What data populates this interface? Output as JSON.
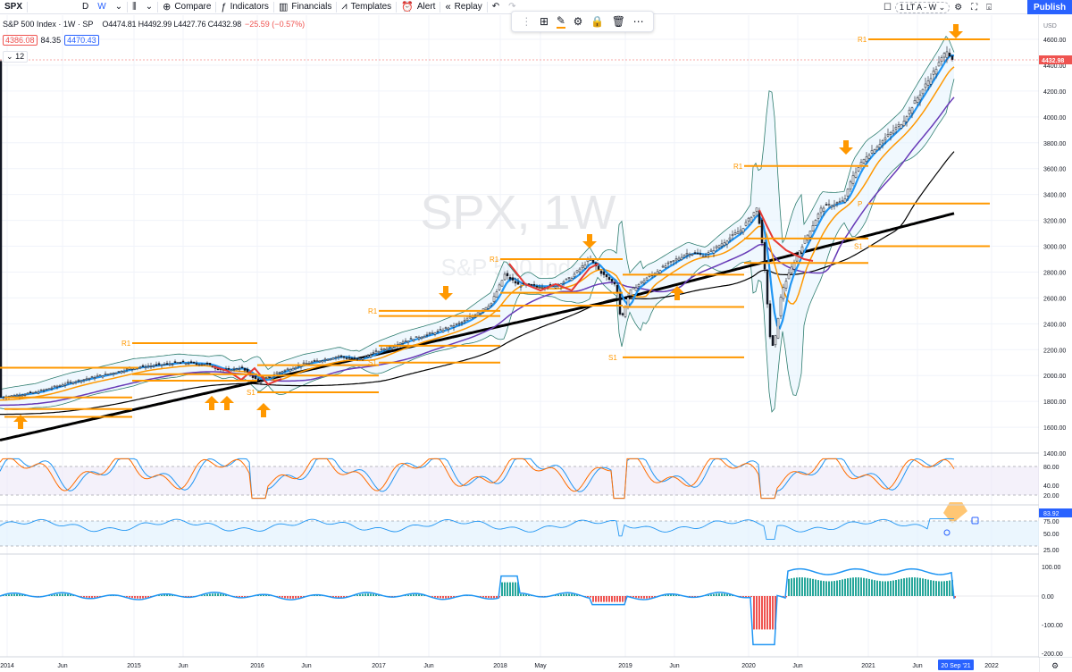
{
  "toolbar": {
    "symbol": "SPX",
    "interval_d": "D",
    "interval_w": "W",
    "compare": "Compare",
    "indicators": "Indicators",
    "financials": "Financials",
    "templates": "Templates",
    "alert": "Alert",
    "replay": "Replay",
    "layout": "1 LT A - W",
    "publish": "Publish"
  },
  "legend": {
    "title": "S&P 500 Index · 1W · SP",
    "ohlc": "O4474.81 H4492.99 L4427.76 C4432.98",
    "change": "−25.59 (−0.57%)",
    "bid": "4386.08",
    "spread": "84.35",
    "ask": "4470.43",
    "collapse_count": "12"
  },
  "watermark": {
    "line1": "SPX, 1W",
    "line2": "S&P 500 Index"
  },
  "price_axis": {
    "currency": "USD",
    "ticks": [
      "4600.00",
      "4400.00",
      "4200.00",
      "4000.00",
      "3800.00",
      "3600.00",
      "3400.00",
      "3200.00",
      "3000.00",
      "2800.00",
      "2600.00",
      "2400.00",
      "2200.00",
      "2000.00",
      "1800.00",
      "1600.00",
      "1400.00"
    ],
    "last_price": "4432.98"
  },
  "stoch_axis": {
    "ticks": [
      "80.00",
      "40.00",
      "20.00"
    ]
  },
  "rsi_axis": {
    "ticks": [
      "75.00",
      "50.00",
      "25.00"
    ],
    "last": "83.92"
  },
  "osc_axis": {
    "ticks": [
      "100.00",
      "0.00",
      "-100.00",
      "-200.00"
    ]
  },
  "time_axis": {
    "labels": [
      "2014",
      "Jun",
      "2015",
      "Jun",
      "2016",
      "Jun",
      "2017",
      "Jun",
      "2018",
      "May",
      "2019",
      "Jun",
      "2020",
      "Jun",
      "2021",
      "Jun",
      "2022"
    ],
    "current": "20 Sep '21"
  },
  "pivots": {
    "r1": "R1",
    "s1": "S1",
    "p": "P"
  },
  "colors": {
    "accent": "#2962ff",
    "down": "#ef5350",
    "up": "#26a69a",
    "pivot": "#ff9800",
    "ma_fast": "#2196f3",
    "ma_mid": "#ff9800",
    "ma_slow": "#673ab7"
  }
}
